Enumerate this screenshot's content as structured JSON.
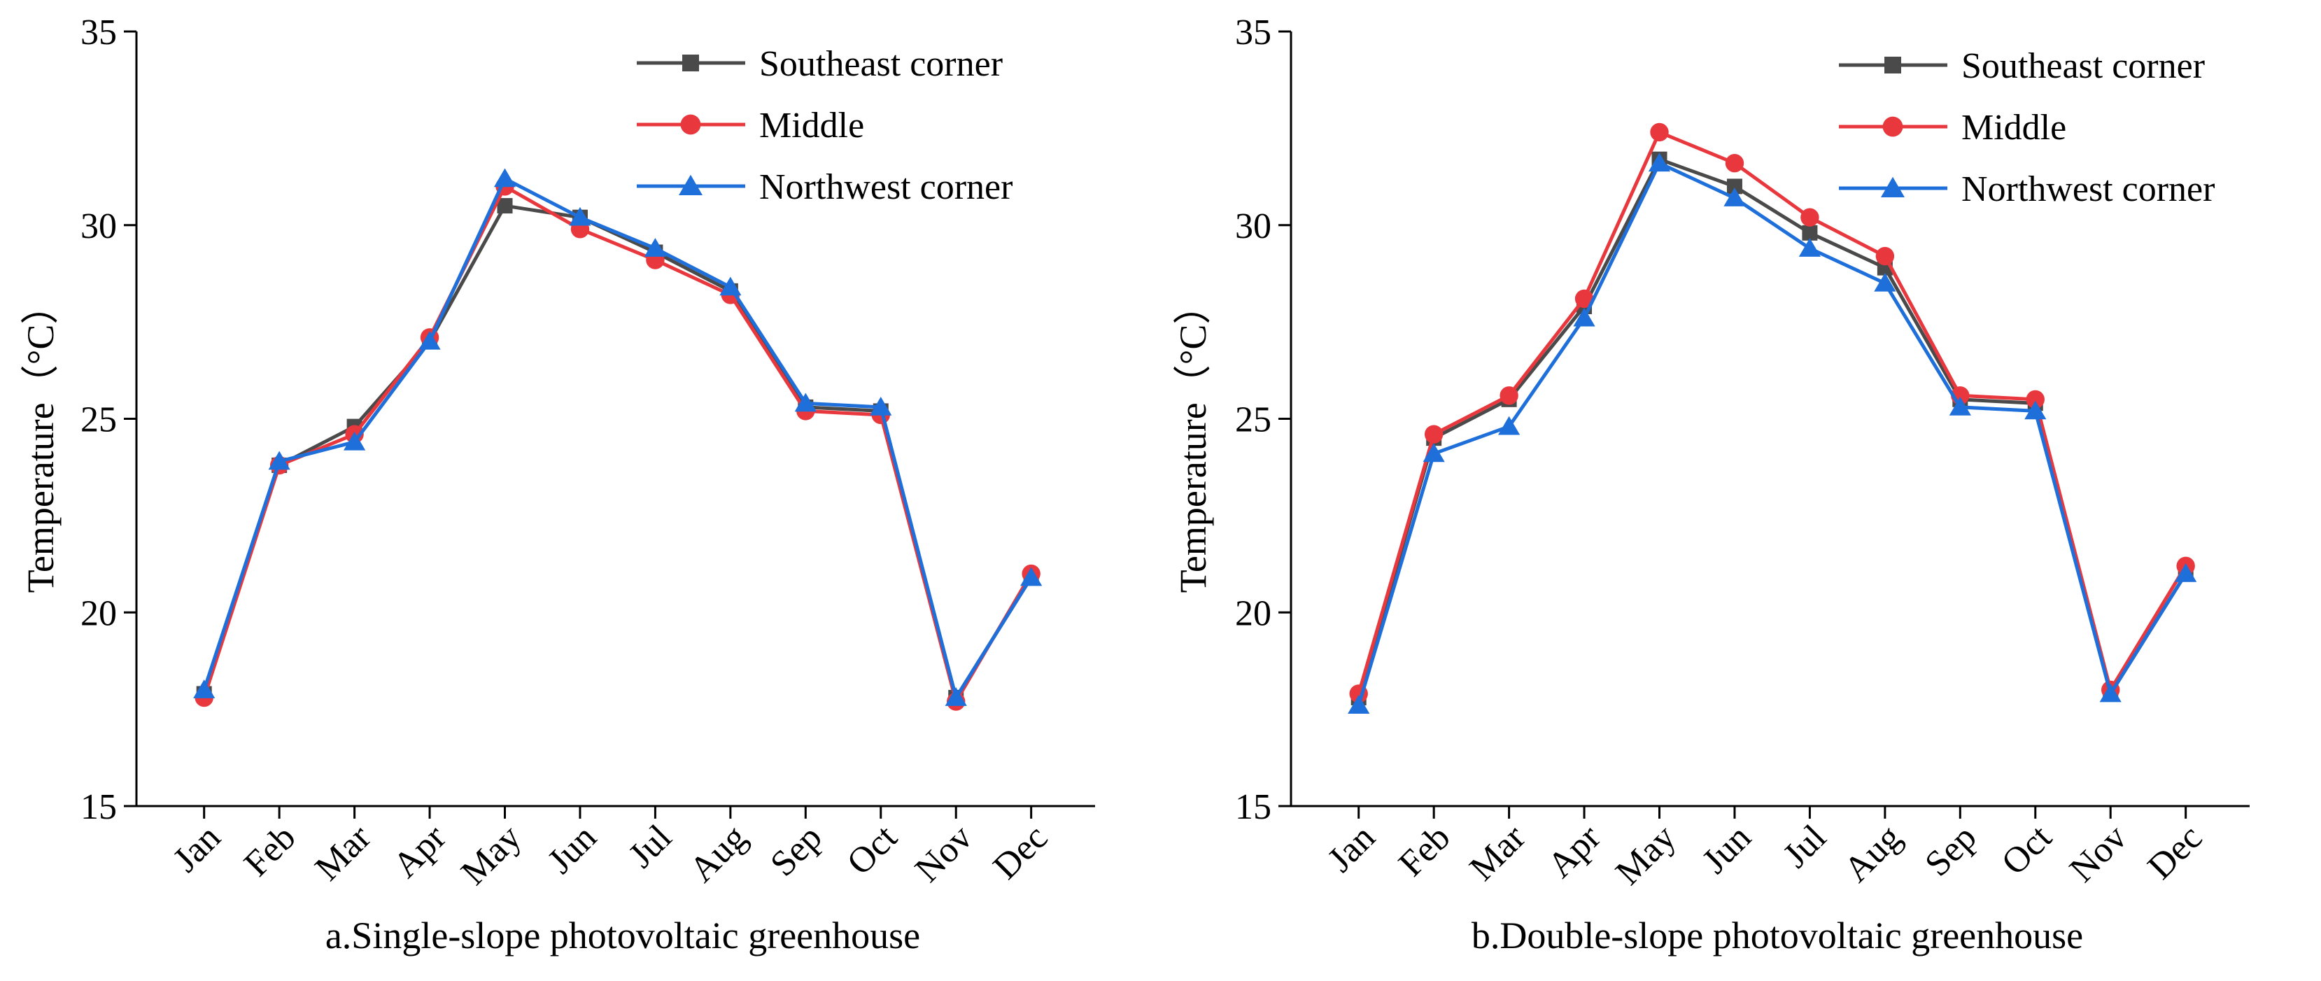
{
  "chart_data": [
    {
      "type": "line",
      "caption": "a.Single-slope photovoltaic greenhouse",
      "title": "",
      "xlabel": "",
      "ylabel": "Temperature（°C）",
      "ylim": [
        15,
        35
      ],
      "yticks": [
        15,
        20,
        25,
        30,
        35
      ],
      "categories": [
        "Jan",
        "Feb",
        "Mar",
        "Apr",
        "May",
        "Jun",
        "Jul",
        "Aug",
        "Sep",
        "Oct",
        "Nov",
        "Dec"
      ],
      "legend_position": "top-right",
      "grid": false,
      "series": [
        {
          "name": "Southeast corner",
          "color": "#4a4a4a",
          "marker": "square",
          "values": [
            17.9,
            23.8,
            24.8,
            27.0,
            30.5,
            30.2,
            29.3,
            28.3,
            25.3,
            25.2,
            17.8,
            20.9
          ]
        },
        {
          "name": "Middle",
          "color": "#e8383d",
          "marker": "circle",
          "values": [
            17.8,
            23.8,
            24.6,
            27.1,
            31.0,
            29.9,
            29.1,
            28.2,
            25.2,
            25.1,
            17.7,
            21.0
          ]
        },
        {
          "name": "Northwest corner",
          "color": "#1e6fd9",
          "marker": "triangle",
          "values": [
            18.0,
            23.9,
            24.4,
            27.0,
            31.2,
            30.2,
            29.4,
            28.4,
            25.4,
            25.3,
            17.8,
            20.9
          ]
        }
      ]
    },
    {
      "type": "line",
      "caption": "b.Double-slope photovoltaic greenhouse",
      "title": "",
      "xlabel": "",
      "ylabel": "Temperature（°C）",
      "ylim": [
        15,
        35
      ],
      "yticks": [
        15,
        20,
        25,
        30,
        35
      ],
      "categories": [
        "Jan",
        "Feb",
        "Mar",
        "Apr",
        "May",
        "Jun",
        "Jul",
        "Aug",
        "Sep",
        "Oct",
        "Nov",
        "Dec"
      ],
      "legend_position": "top-right",
      "grid": false,
      "series": [
        {
          "name": "Southeast corner",
          "color": "#4a4a4a",
          "marker": "square",
          "values": [
            17.8,
            24.5,
            25.5,
            27.9,
            31.7,
            31.0,
            29.8,
            28.9,
            25.5,
            25.4,
            17.9,
            21.0
          ]
        },
        {
          "name": "Middle",
          "color": "#e8383d",
          "marker": "circle",
          "values": [
            17.9,
            24.6,
            25.6,
            28.1,
            32.4,
            31.6,
            30.2,
            29.2,
            25.6,
            25.5,
            18.0,
            21.2
          ]
        },
        {
          "name": "Northwest corner",
          "color": "#1e6fd9",
          "marker": "triangle",
          "values": [
            17.6,
            24.1,
            24.8,
            27.6,
            31.6,
            30.7,
            29.4,
            28.5,
            25.3,
            25.2,
            17.9,
            21.0
          ]
        }
      ]
    }
  ]
}
